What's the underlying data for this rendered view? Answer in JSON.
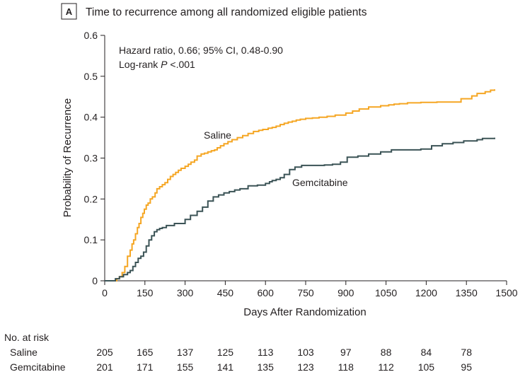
{
  "panel": {
    "letter": "A",
    "title": "Time to recurrence among all randomized eligible patients"
  },
  "colors": {
    "saline": "#f5a623",
    "gemcitabine": "#3b5356",
    "axis": "#231f20",
    "text": "#231f20"
  },
  "annotation": {
    "hr": "Hazard ratio, 0.66; 95% CI, 0.48-0.90",
    "logrank_prefix": "Log-rank ",
    "logrank_p": "P",
    "logrank_value": " <.001"
  },
  "risk_table": {
    "header": "No. at risk",
    "rows": [
      {
        "label": "Saline",
        "values": [
          "205",
          "165",
          "137",
          "125",
          "113",
          "103",
          "97",
          "88",
          "84",
          "78"
        ]
      },
      {
        "label": "Gemcitabine",
        "values": [
          "201",
          "171",
          "155",
          "141",
          "135",
          "123",
          "118",
          "112",
          "105",
          "95"
        ]
      }
    ]
  },
  "chart_data": {
    "type": "line",
    "xlabel": "Days After Randomization",
    "ylabel": "Probability of Recurrence",
    "xlim": [
      0,
      1500
    ],
    "ylim": [
      0,
      0.6
    ],
    "xticks": [
      "0",
      "150",
      "300",
      "450",
      "600",
      "750",
      "900",
      "1050",
      "1200",
      "1350",
      "1500"
    ],
    "yticks": [
      "0",
      "0.1",
      "0.2",
      "0.3",
      "0.4",
      "0.5",
      "0.6"
    ],
    "series": [
      {
        "name": "Saline",
        "step": true,
        "x": [
          0,
          45,
          55,
          65,
          75,
          85,
          95,
          102,
          108,
          115,
          122,
          128,
          135,
          142,
          148,
          155,
          162,
          170,
          178,
          188,
          195,
          205,
          215,
          225,
          235,
          245,
          255,
          265,
          275,
          285,
          300,
          312,
          322,
          335,
          345,
          360,
          372,
          385,
          398,
          410,
          420,
          432,
          445,
          460,
          475,
          495,
          515,
          535,
          555,
          575,
          590,
          610,
          625,
          640,
          655,
          670,
          685,
          700,
          715,
          730,
          750,
          775,
          800,
          830,
          860,
          900,
          925,
          950,
          985,
          1030,
          1060,
          1080,
          1100,
          1130,
          1180,
          1240,
          1290,
          1330,
          1370,
          1390,
          1420,
          1440,
          1455
        ],
        "y": [
          0,
          0.005,
          0.01,
          0.02,
          0.035,
          0.06,
          0.075,
          0.09,
          0.1,
          0.115,
          0.13,
          0.14,
          0.155,
          0.165,
          0.175,
          0.185,
          0.19,
          0.2,
          0.205,
          0.215,
          0.225,
          0.23,
          0.235,
          0.24,
          0.248,
          0.255,
          0.26,
          0.265,
          0.27,
          0.275,
          0.28,
          0.285,
          0.29,
          0.295,
          0.305,
          0.31,
          0.312,
          0.315,
          0.318,
          0.32,
          0.325,
          0.33,
          0.335,
          0.34,
          0.345,
          0.35,
          0.355,
          0.36,
          0.365,
          0.368,
          0.37,
          0.373,
          0.375,
          0.378,
          0.382,
          0.385,
          0.388,
          0.39,
          0.393,
          0.395,
          0.397,
          0.398,
          0.4,
          0.402,
          0.405,
          0.41,
          0.415,
          0.42,
          0.425,
          0.428,
          0.43,
          0.432,
          0.433,
          0.435,
          0.436,
          0.437,
          0.437,
          0.445,
          0.452,
          0.458,
          0.462,
          0.466,
          0.468
        ]
      },
      {
        "name": "Gemcitabine",
        "step": true,
        "x": [
          0,
          40,
          55,
          70,
          85,
          95,
          105,
          115,
          125,
          135,
          145,
          155,
          165,
          175,
          185,
          195,
          205,
          215,
          230,
          260,
          300,
          320,
          345,
          365,
          385,
          405,
          425,
          445,
          465,
          485,
          505,
          535,
          570,
          600,
          615,
          625,
          640,
          655,
          670,
          690,
          710,
          735,
          760,
          790,
          820,
          850,
          880,
          905,
          945,
          985,
          1030,
          1070,
          1120,
          1160,
          1180,
          1220,
          1260,
          1300,
          1340,
          1390,
          1410,
          1455
        ],
        "y": [
          0,
          0.005,
          0.01,
          0.015,
          0.02,
          0.025,
          0.035,
          0.045,
          0.055,
          0.06,
          0.07,
          0.085,
          0.1,
          0.11,
          0.12,
          0.125,
          0.128,
          0.13,
          0.135,
          0.14,
          0.15,
          0.16,
          0.17,
          0.18,
          0.195,
          0.205,
          0.21,
          0.215,
          0.218,
          0.222,
          0.225,
          0.232,
          0.234,
          0.238,
          0.242,
          0.245,
          0.248,
          0.252,
          0.26,
          0.272,
          0.278,
          0.282,
          0.282,
          0.282,
          0.283,
          0.285,
          0.29,
          0.302,
          0.305,
          0.31,
          0.315,
          0.32,
          0.32,
          0.32,
          0.322,
          0.33,
          0.335,
          0.338,
          0.342,
          0.345,
          0.348,
          0.35
        ]
      }
    ],
    "series_labels": [
      "Saline",
      "Gemcitabine"
    ]
  }
}
